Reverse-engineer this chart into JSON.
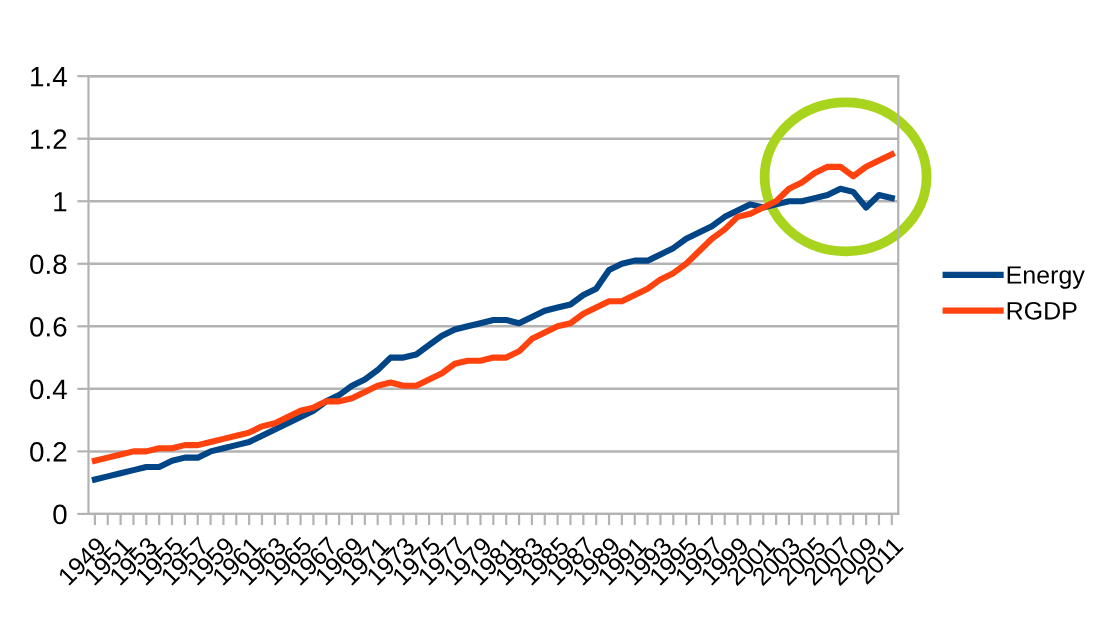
{
  "chart_data": {
    "type": "line",
    "categories": [
      "1949",
      null,
      "1951",
      null,
      "1953",
      null,
      "1955",
      null,
      "1957",
      null,
      "1959",
      null,
      "1961",
      null,
      "1963",
      null,
      "1965",
      null,
      "1967",
      null,
      "1969",
      null,
      "1971",
      null,
      "1973",
      null,
      "1975",
      null,
      "1977",
      null,
      "1979",
      null,
      "1981",
      null,
      "1983",
      null,
      "1985",
      null,
      "1987",
      null,
      "1989",
      null,
      "1991",
      null,
      "1993",
      null,
      "1995",
      null,
      "1997",
      null,
      "1999",
      null,
      "2001",
      null,
      "2003",
      null,
      "2005",
      null,
      "2007",
      null,
      "2009",
      null,
      "2011"
    ],
    "series": [
      {
        "name": "Energy",
        "color": "#004586",
        "values": [
          0.11,
          0.12,
          0.13,
          0.14,
          0.15,
          0.15,
          0.17,
          0.18,
          0.18,
          0.2,
          0.21,
          0.22,
          0.23,
          0.25,
          0.27,
          0.29,
          0.31,
          0.33,
          0.36,
          0.38,
          0.41,
          0.43,
          0.46,
          0.5,
          0.5,
          0.51,
          0.54,
          0.57,
          0.59,
          0.6,
          0.61,
          0.62,
          0.62,
          0.61,
          0.63,
          0.65,
          0.66,
          0.67,
          0.7,
          0.72,
          0.78,
          0.8,
          0.81,
          0.81,
          0.83,
          0.85,
          0.88,
          0.9,
          0.92,
          0.95,
          0.97,
          0.99,
          0.98,
          0.99,
          1.0,
          1.0,
          1.01,
          1.02,
          1.04,
          1.03,
          0.98,
          1.02,
          1.01
        ]
      },
      {
        "name": "RGDP",
        "color": "#ff420e",
        "values": [
          0.17,
          0.18,
          0.19,
          0.2,
          0.2,
          0.21,
          0.21,
          0.22,
          0.22,
          0.23,
          0.24,
          0.25,
          0.26,
          0.28,
          0.29,
          0.31,
          0.33,
          0.34,
          0.36,
          0.36,
          0.37,
          0.39,
          0.41,
          0.42,
          0.41,
          0.41,
          0.43,
          0.45,
          0.48,
          0.49,
          0.49,
          0.5,
          0.5,
          0.52,
          0.56,
          0.58,
          0.6,
          0.61,
          0.64,
          0.66,
          0.68,
          0.68,
          0.7,
          0.72,
          0.75,
          0.77,
          0.8,
          0.84,
          0.88,
          0.91,
          0.95,
          0.96,
          0.98,
          1.0,
          1.04,
          1.06,
          1.09,
          1.11,
          1.11,
          1.08,
          1.11,
          1.13,
          1.15
        ]
      }
    ],
    "ylim": [
      0,
      1.4
    ],
    "yticks": [
      0,
      0.2,
      0.4,
      0.6,
      0.8,
      1,
      1.2,
      1.4
    ],
    "grid": "y",
    "legend": "right",
    "marker": "none",
    "line_style": "solid"
  }
}
